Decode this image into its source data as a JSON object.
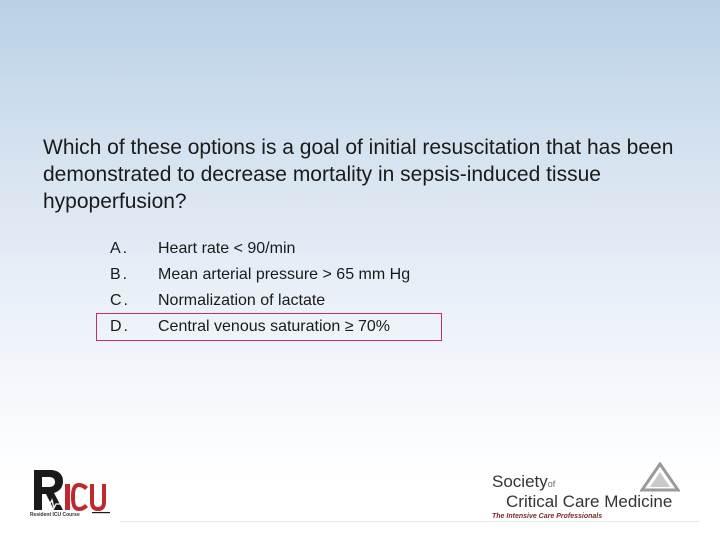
{
  "slide": {
    "question": "Which of these options is a goal of initial resuscitation that has been demonstrated to decrease mortality in sepsis-induced tissue hypoperfusion?",
    "options": [
      {
        "letter": "A.",
        "text": "Heart rate < 90/min"
      },
      {
        "letter": "B.",
        "text": "Mean arterial pressure > 65 mm Hg"
      },
      {
        "letter": "C.",
        "text": "Normalization of lactate"
      },
      {
        "letter": "D.",
        "text": "Central venous saturation ≥ 70%"
      }
    ],
    "highlighted_option": "D."
  },
  "logos": {
    "left": {
      "wordmark": "RICU",
      "tagline": "Resident ICU Course"
    },
    "right": {
      "line1": "Society",
      "line1_suffix": "of",
      "line2": "Critical Care Medicine",
      "tagline": "The Intensive Care Professionals"
    }
  },
  "colors": {
    "highlight_border": "#c0306a",
    "logo_red": "#c0282d",
    "text": "#1a1a1a"
  }
}
